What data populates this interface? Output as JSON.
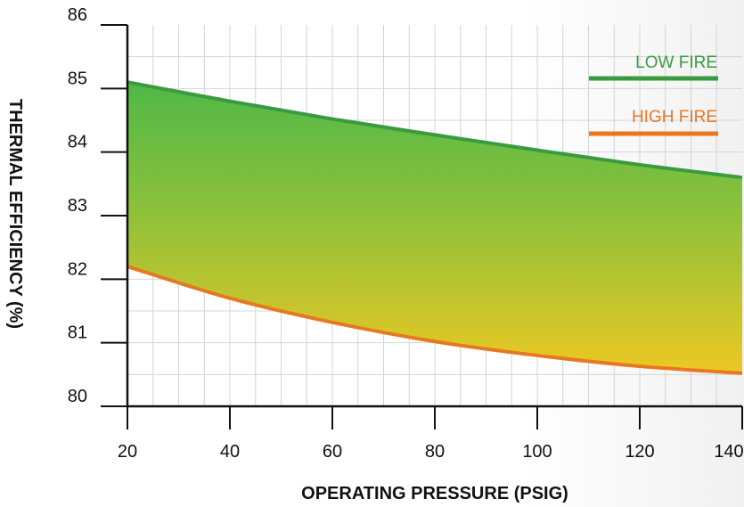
{
  "chart_data": {
    "type": "area",
    "xlabel": "OPERATING PRESSURE (PSIG)",
    "ylabel": "THERMAL EFFICIENCY (%)",
    "xlim": [
      20,
      140
    ],
    "ylim": [
      80,
      86
    ],
    "xticks": [
      20,
      40,
      60,
      80,
      100,
      120,
      140
    ],
    "yticks": [
      80,
      81,
      82,
      83,
      84,
      85,
      86
    ],
    "grid": true,
    "legend_position": "top-right",
    "fill": "gradient between series (yellow to green)",
    "series": [
      {
        "name": "LOW FIRE",
        "color": "#3a9a3f",
        "x": [
          20,
          40,
          60,
          80,
          100,
          120,
          140
        ],
        "y": [
          85.1,
          84.8,
          84.52,
          84.27,
          84.03,
          83.8,
          83.6
        ]
      },
      {
        "name": "HIGH FIRE",
        "color": "#e87722",
        "x": [
          20,
          40,
          60,
          80,
          100,
          120,
          140
        ],
        "y": [
          82.2,
          81.7,
          81.32,
          81.02,
          80.8,
          80.63,
          80.52
        ]
      }
    ]
  }
}
